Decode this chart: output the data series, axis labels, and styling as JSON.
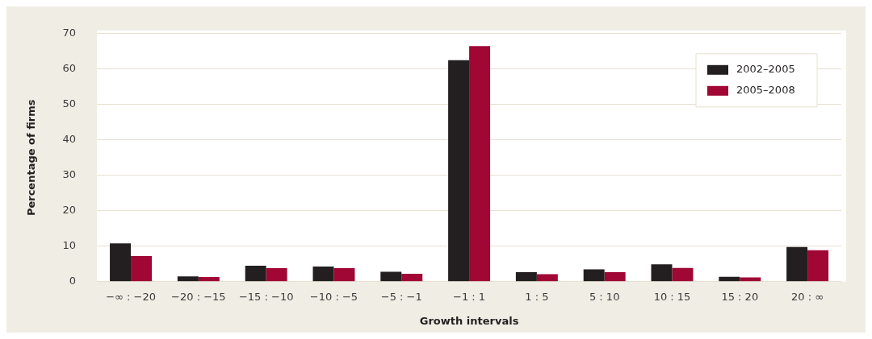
{
  "chart_data": {
    "type": "bar",
    "xlabel": "Growth intervals",
    "ylabel": "Percentage of firms",
    "categories": [
      "−∞ : −20",
      "−20 : −15",
      "−15 : −10",
      "−10 : −5",
      "−5 : −1",
      "−1 : 1",
      "1 : 5",
      "5 : 10",
      "10 : 15",
      "15 : 20",
      "20 : ∞"
    ],
    "series": [
      {
        "name": "2002–2005",
        "color": "#231f20",
        "values": [
          10.8,
          1.5,
          4.5,
          4.3,
          2.8,
          62.5,
          2.7,
          3.5,
          4.9,
          1.4,
          9.8
        ]
      },
      {
        "name": "2005–2008",
        "color": "#a00734",
        "values": [
          7.2,
          1.3,
          3.8,
          3.8,
          2.2,
          66.5,
          2.1,
          2.7,
          3.9,
          1.2,
          8.9
        ]
      }
    ],
    "ylim": [
      0,
      70
    ],
    "yticks": [
      0,
      10,
      20,
      30,
      40,
      50,
      60,
      70
    ],
    "grid": "y",
    "legend": "top right"
  }
}
